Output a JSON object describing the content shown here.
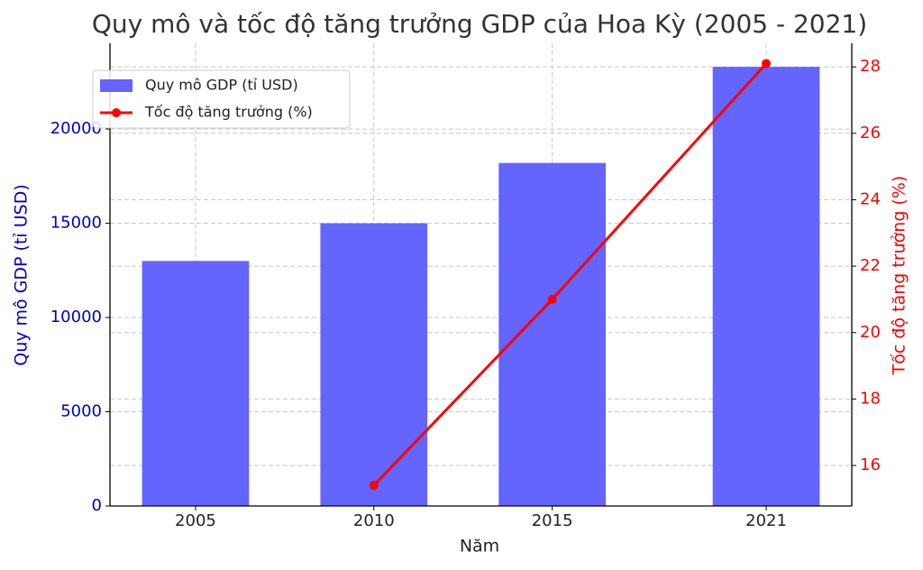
{
  "chart_data": {
    "type": "bar",
    "title": "Quy mô và tốc độ tăng trưởng GDP của Hoa Kỳ (2005 - 2021)",
    "x_label": "Năm",
    "y_label": "Quy mô GDP (tỉ USD)",
    "y2_label": "Tốc độ tăng trưởng (%)",
    "x": [
      2005,
      2010,
      2015,
      2021
    ],
    "xlim": [
      2002.6,
      2023.4
    ],
    "xticks": [
      2005,
      2010,
      2015,
      2021
    ],
    "ylim": [
      0,
      24550
    ],
    "yticks": [
      0,
      5000,
      10000,
      15000,
      20000
    ],
    "y2lim": [
      14.78,
      28.71
    ],
    "y2ticks": [
      16,
      18,
      20,
      22,
      24,
      26,
      28
    ],
    "grid": true,
    "legend": "upper-left",
    "y_color": "#0000cc",
    "y2_color": "#ff0000",
    "series": [
      {
        "name": "Quy mô GDP (tỉ USD)",
        "type": "bar",
        "color": "#6464ff",
        "values": [
          13000,
          15000,
          18200,
          23300
        ]
      },
      {
        "name": "Tốc độ tăng trưởng (%)",
        "type": "line",
        "axis": "y2",
        "color": "#ff0000",
        "values": [
          null,
          15.4,
          21.0,
          28.1
        ]
      }
    ]
  }
}
